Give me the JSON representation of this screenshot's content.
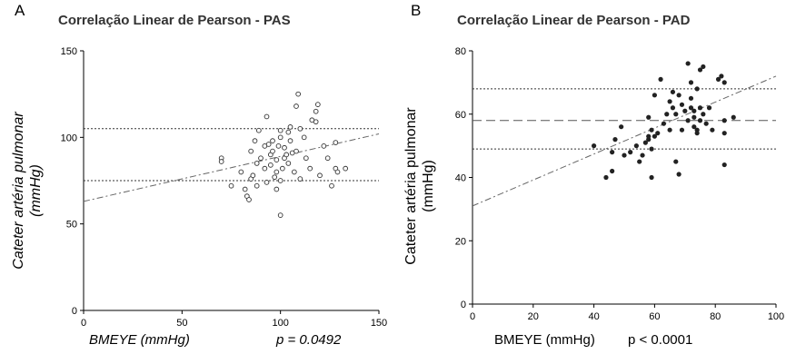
{
  "panels": [
    {
      "letter": "A",
      "title": "Correlação Linear de Pearson - PAS",
      "ylabel_line1": "Cateter artéria pulmonar",
      "ylabel_line2": "(mmHg)",
      "xlabel": "BMEYE (mmHg)",
      "pvalue": "p = 0.0492"
    },
    {
      "letter": "B",
      "title": "Correlação Linear de Pearson - PAD",
      "ylabel_line1": "Cateter artéria pulmonar",
      "ylabel_line2": "(mmHg)",
      "xlabel": "BMEYE (mmHg)",
      "pvalue": "p < 0.0001"
    }
  ],
  "chart_data": [
    {
      "type": "scatter",
      "title": "Correlação Linear de Pearson - PAS",
      "xlabel": "BMEYE (mmHg)",
      "ylabel": "Cateter artéria pulmonar (mmHg)",
      "xlim": [
        0,
        150
      ],
      "ylim": [
        0,
        150
      ],
      "xticks": [
        "0",
        "50",
        "100",
        "150"
      ],
      "yticks": [
        "0",
        "50",
        "100",
        "150"
      ],
      "marker": "open-circle",
      "points": [
        [
          70,
          88
        ],
        [
          70,
          86
        ],
        [
          75,
          72
        ],
        [
          80,
          80
        ],
        [
          82,
          70
        ],
        [
          83,
          66
        ],
        [
          84,
          64
        ],
        [
          85,
          92
        ],
        [
          85,
          76
        ],
        [
          86,
          78
        ],
        [
          87,
          98
        ],
        [
          88,
          85
        ],
        [
          88,
          72
        ],
        [
          89,
          104
        ],
        [
          90,
          88
        ],
        [
          92,
          82
        ],
        [
          92,
          95
        ],
        [
          93,
          74
        ],
        [
          93,
          112
        ],
        [
          94,
          96
        ],
        [
          95,
          84
        ],
        [
          95,
          90
        ],
        [
          96,
          98
        ],
        [
          96,
          92
        ],
        [
          97,
          77
        ],
        [
          98,
          70
        ],
        [
          98,
          80
        ],
        [
          98,
          87
        ],
        [
          99,
          95
        ],
        [
          100,
          100
        ],
        [
          100,
          75
        ],
        [
          100,
          104
        ],
        [
          100,
          55
        ],
        [
          101,
          82
        ],
        [
          102,
          94
        ],
        [
          102,
          88
        ],
        [
          103,
          90
        ],
        [
          104,
          103
        ],
        [
          104,
          85
        ],
        [
          105,
          98
        ],
        [
          105,
          106
        ],
        [
          106,
          91
        ],
        [
          107,
          80
        ],
        [
          108,
          92
        ],
        [
          108,
          118
        ],
        [
          109,
          125
        ],
        [
          110,
          105
        ],
        [
          110,
          76
        ],
        [
          112,
          100
        ],
        [
          113,
          88
        ],
        [
          115,
          82
        ],
        [
          116,
          110
        ],
        [
          118,
          115
        ],
        [
          118,
          109
        ],
        [
          119,
          119
        ],
        [
          120,
          78
        ],
        [
          122,
          95
        ],
        [
          124,
          88
        ],
        [
          126,
          72
        ],
        [
          128,
          82
        ],
        [
          128,
          97
        ],
        [
          129,
          80
        ],
        [
          133,
          82
        ]
      ],
      "regression_line": [
        [
          0,
          63
        ],
        [
          150,
          102
        ]
      ],
      "reference_lines": [
        105,
        75
      ],
      "pvalue": "p = 0.0492"
    },
    {
      "type": "scatter",
      "title": "Correlação Linear de Pearson - PAD",
      "xlabel": "BMEYE (mmHg)",
      "ylabel": "Cateter artéria pulmonar (mmHg)",
      "xlim": [
        0,
        100
      ],
      "ylim": [
        0,
        80
      ],
      "xticks": [
        "0",
        "20",
        "40",
        "60",
        "80",
        "100"
      ],
      "yticks": [
        "0",
        "20",
        "40",
        "60",
        "80"
      ],
      "marker": "filled-circle",
      "points": [
        [
          40,
          50
        ],
        [
          44,
          40
        ],
        [
          46,
          42
        ],
        [
          46,
          48
        ],
        [
          47,
          52
        ],
        [
          49,
          56
        ],
        [
          50,
          47
        ],
        [
          52,
          48
        ],
        [
          54,
          50
        ],
        [
          55,
          45
        ],
        [
          56,
          47
        ],
        [
          57,
          51
        ],
        [
          58,
          52
        ],
        [
          58,
          59
        ],
        [
          58,
          53
        ],
        [
          59,
          49
        ],
        [
          59,
          55
        ],
        [
          59,
          40
        ],
        [
          60,
          53
        ],
        [
          60,
          66
        ],
        [
          61,
          54
        ],
        [
          62,
          71
        ],
        [
          63,
          57
        ],
        [
          64,
          60
        ],
        [
          65,
          55
        ],
        [
          65,
          64
        ],
        [
          66,
          67
        ],
        [
          66,
          62
        ],
        [
          67,
          45
        ],
        [
          67,
          60
        ],
        [
          68,
          41
        ],
        [
          68,
          66
        ],
        [
          69,
          63
        ],
        [
          69,
          55
        ],
        [
          70,
          61
        ],
        [
          71,
          76
        ],
        [
          71,
          58
        ],
        [
          72,
          70
        ],
        [
          72,
          65
        ],
        [
          72,
          62
        ],
        [
          73,
          59
        ],
        [
          73,
          56
        ],
        [
          73,
          61
        ],
        [
          74,
          68
        ],
        [
          74,
          55
        ],
        [
          74,
          54
        ],
        [
          75,
          62
        ],
        [
          75,
          58
        ],
        [
          75,
          74
        ],
        [
          76,
          75
        ],
        [
          76,
          60
        ],
        [
          77,
          57
        ],
        [
          78,
          62
        ],
        [
          79,
          55
        ],
        [
          81,
          71
        ],
        [
          82,
          72
        ],
        [
          83,
          58
        ],
        [
          83,
          44
        ],
        [
          83,
          54
        ],
        [
          83,
          70
        ],
        [
          86,
          59
        ]
      ],
      "regression_line": [
        [
          0,
          31
        ],
        [
          100,
          72
        ]
      ],
      "reference_lines": [
        58,
        68,
        49
      ],
      "reference_styles": [
        "dashed",
        "dotted",
        "dotted"
      ],
      "pvalue": "p < 0.0001"
    }
  ]
}
